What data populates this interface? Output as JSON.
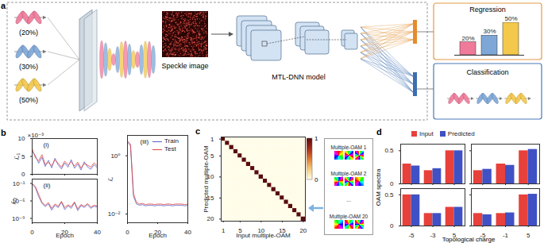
{
  "figure": {
    "panel_labels": [
      "a",
      "b",
      "c",
      "d"
    ],
    "panel_a": {
      "inputs": [
        {
          "label": "(20%)",
          "color": "#f07a9a"
        },
        {
          "label": "(30%)",
          "color": "#7ea7d8"
        },
        {
          "label": "(50%)",
          "color": "#f3c84b"
        }
      ],
      "speckle_label": "Speckle image",
      "model_label": "MTL-DNN model",
      "classification_label": "Classification"
    },
    "panel_c_side": {
      "items": [
        "Multiple-OAM 1",
        "Multiple-OAM 2",
        "...",
        "Multiple-OAM 20"
      ]
    }
  },
  "chart_data": [
    {
      "type": "bar",
      "title": "Regression",
      "categories": [
        null,
        null,
        null
      ],
      "values": [
        20,
        30,
        50
      ],
      "value_labels": [
        "20%",
        "30%",
        "50%"
      ],
      "colors": [
        "#f07a9a",
        "#7ea7d8",
        "#f3c84b"
      ],
      "ylim": [
        0,
        50
      ],
      "data_labels": true,
      "tick_labels": false
    },
    {
      "type": "line",
      "title": "(i)",
      "ylabel": "ℒ₁",
      "y_unit_label": "×10⁻³",
      "x": [
        0,
        2,
        4,
        6,
        8,
        10,
        12,
        14,
        16,
        18,
        20,
        22,
        24,
        26,
        28,
        30,
        32,
        34,
        36,
        38,
        40
      ],
      "series": [
        {
          "name": "Train",
          "color": "#5b5fc7",
          "values": [
            6.5,
            5.2,
            3.1,
            4.8,
            2.2,
            3.9,
            1.8,
            4.5,
            2.6,
            1.5,
            3.2,
            2.0,
            4.1,
            1.7,
            2.9,
            1.2,
            3.5,
            2.1,
            1.4,
            2.7,
            1.9
          ]
        },
        {
          "name": "Test",
          "color": "#e2453c",
          "values": [
            7.2,
            4.6,
            3.8,
            5.5,
            2.8,
            3.3,
            2.4,
            4.0,
            3.1,
            2.0,
            3.7,
            2.6,
            3.5,
            2.3,
            3.4,
            1.8,
            3.0,
            2.6,
            2.0,
            3.2,
            2.4
          ]
        }
      ],
      "xlim": [
        0,
        40
      ],
      "xticks": [
        0,
        20,
        40
      ],
      "ylim": [
        0,
        10
      ],
      "yticks": [
        0,
        5,
        10
      ],
      "tick_labels": "y"
    },
    {
      "type": "line",
      "title": "(ii)",
      "ylabel": "ℒ₂",
      "xlabel": "Epoch",
      "log": "y",
      "x": [
        0,
        2,
        4,
        6,
        8,
        10,
        12,
        14,
        16,
        18,
        20,
        22,
        24,
        26,
        28,
        30,
        32,
        34,
        36,
        38,
        40
      ],
      "series": [
        {
          "name": "Train",
          "color": "#5b5fc7",
          "values": [
            0.08,
            0.01,
            0.0001,
            3e-06,
            5e-07,
            2e-06,
            8e-08,
            1e-06,
            3e-07,
            5e-06,
            1e-07,
            8e-07,
            2e-07,
            4e-06,
            6e-08,
            9e-07,
            3e-07,
            1.5e-06,
            2e-07,
            6e-07,
            4e-07
          ]
        },
        {
          "name": "Test",
          "color": "#e2453c",
          "values": [
            0.1,
            0.02,
            0.0003,
            5e-06,
            1e-06,
            4e-06,
            2e-07,
            2e-06,
            6e-07,
            8e-06,
            3e-07,
            1.2e-06,
            5e-07,
            6e-06,
            1.5e-07,
            1.5e-06,
            6e-07,
            2.5e-06,
            4e-07,
            1e-06,
            7e-07
          ]
        }
      ],
      "xlim": [
        0,
        40
      ],
      "xticks": [
        0,
        20,
        40
      ],
      "ylim": [
        1e-10,
        1
      ],
      "yticks": [
        {
          "value": 0.1,
          "label": "10⁻¹"
        },
        {
          "value": 1e-05,
          "label": "10⁻⁵"
        },
        {
          "value": 1e-09,
          "label": "10⁻⁹"
        }
      ]
    },
    {
      "type": "line",
      "title": "(iii)",
      "ylabel": "ℒ",
      "xlabel": "Epoch",
      "log": "y",
      "legend": "top-right",
      "x": [
        0,
        2,
        4,
        6,
        8,
        10,
        12,
        14,
        16,
        18,
        20,
        22,
        24,
        26,
        28,
        30,
        32,
        34,
        36,
        38,
        40
      ],
      "series": [
        {
          "name": "Train",
          "color": "#5b5fc7",
          "values": [
            3.0,
            2.2,
            0.04,
            0.022,
            0.02,
            0.021,
            0.019,
            0.02,
            0.02,
            0.019,
            0.02,
            0.02,
            0.019,
            0.02,
            0.02,
            0.019,
            0.02,
            0.02,
            0.02,
            0.019,
            0.02
          ]
        },
        {
          "name": "Test",
          "color": "#e2453c",
          "values": [
            3.2,
            2.5,
            0.05,
            0.025,
            0.022,
            0.023,
            0.021,
            0.022,
            0.022,
            0.021,
            0.022,
            0.022,
            0.021,
            0.022,
            0.022,
            0.021,
            0.022,
            0.022,
            0.022,
            0.021,
            0.022
          ]
        }
      ],
      "xlim": [
        0,
        40
      ],
      "xticks": [
        0,
        20,
        40
      ],
      "ylim": [
        0.005,
        5
      ],
      "yticks": [
        {
          "value": 1,
          "label": "10⁰"
        },
        {
          "value": 0.01,
          "label": "10⁻²"
        }
      ]
    },
    {
      "type": "heatmap",
      "xlabel": "Input multiple-OAM",
      "ylabel": "Predicted multiple-OAM",
      "x": [
        1,
        2,
        3,
        4,
        5,
        6,
        7,
        8,
        9,
        10,
        11,
        12,
        13,
        14,
        15,
        16,
        17,
        18,
        19,
        20
      ],
      "y": [
        1,
        2,
        3,
        4,
        5,
        6,
        7,
        8,
        9,
        10,
        11,
        12,
        13,
        14,
        15,
        16,
        17,
        18,
        19,
        20
      ],
      "cells": [
        [
          1,
          0,
          0,
          0,
          0,
          0,
          0,
          0,
          0,
          0,
          0,
          0,
          0,
          0,
          0,
          0,
          0,
          0,
          0,
          0
        ],
        [
          0,
          1,
          0,
          0,
          0,
          0,
          0,
          0,
          0,
          0,
          0,
          0,
          0,
          0,
          0,
          0,
          0,
          0,
          0,
          0
        ],
        [
          0,
          0,
          1,
          0,
          0,
          0,
          0,
          0,
          0,
          0,
          0,
          0,
          0,
          0,
          0,
          0,
          0,
          0,
          0,
          0
        ],
        [
          0,
          0,
          0,
          1,
          0,
          0,
          0,
          0,
          0,
          0,
          0,
          0,
          0,
          0,
          0,
          0,
          0,
          0,
          0,
          0
        ],
        [
          0,
          0,
          0,
          0,
          1,
          0,
          0,
          0,
          0,
          0,
          0,
          0,
          0,
          0,
          0,
          0,
          0,
          0,
          0,
          0
        ],
        [
          0,
          0,
          0,
          0,
          0,
          1,
          0,
          0,
          0,
          0,
          0,
          0,
          0,
          0,
          0,
          0,
          0,
          0,
          0,
          0
        ],
        [
          0,
          0,
          0,
          0,
          0,
          0,
          1,
          0,
          0,
          0,
          0,
          0,
          0,
          0,
          0,
          0,
          0,
          0,
          0,
          0
        ],
        [
          0,
          0,
          0,
          0,
          0,
          0,
          0,
          1,
          0,
          0,
          0,
          0,
          0,
          0,
          0,
          0,
          0,
          0,
          0,
          0
        ],
        [
          0,
          0,
          0,
          0,
          0,
          0,
          0,
          0,
          1,
          0,
          0,
          0,
          0,
          0,
          0,
          0,
          0,
          0,
          0,
          0
        ],
        [
          0,
          0,
          0,
          0,
          0,
          0,
          0,
          0,
          0,
          1,
          0,
          0,
          0,
          0,
          0,
          0,
          0,
          0,
          0,
          0
        ],
        [
          0,
          0,
          0,
          0,
          0,
          0,
          0,
          0,
          0,
          0,
          1,
          0,
          0,
          0,
          0,
          0,
          0,
          0,
          0,
          0
        ],
        [
          0,
          0,
          0,
          0,
          0,
          0,
          0,
          0,
          0,
          0,
          0,
          1,
          0,
          0,
          0,
          0,
          0,
          0,
          0,
          0
        ],
        [
          0,
          0,
          0,
          0,
          0,
          0,
          0,
          0,
          0,
          0,
          0,
          0,
          1,
          0,
          0,
          0,
          0,
          0,
          0,
          0
        ],
        [
          0,
          0,
          0,
          0,
          0,
          0,
          0,
          0,
          0,
          0,
          0,
          0,
          0,
          1,
          0,
          0,
          0,
          0,
          0,
          0
        ],
        [
          0,
          0,
          0,
          0,
          0,
          0,
          0,
          0,
          0,
          0,
          0,
          0,
          0,
          0,
          1,
          0,
          0,
          0,
          0,
          0
        ],
        [
          0,
          0,
          0,
          0,
          0,
          0,
          0,
          0,
          0,
          0,
          0,
          0,
          0,
          0,
          0,
          1,
          0,
          0,
          0,
          0
        ],
        [
          0,
          0,
          0,
          0,
          0,
          0,
          0,
          0,
          0,
          0,
          0,
          0,
          0,
          0,
          0,
          0,
          1,
          0,
          0,
          0
        ],
        [
          0,
          0,
          0,
          0,
          0,
          0,
          0,
          0,
          0,
          0,
          0,
          0,
          0,
          0,
          0,
          0,
          0,
          1,
          0,
          0
        ],
        [
          0,
          0,
          0,
          0,
          0,
          0,
          0,
          0,
          0,
          0,
          0,
          0,
          0,
          0,
          0,
          0,
          0,
          0,
          1,
          0
        ],
        [
          0,
          0,
          0,
          0,
          0,
          0,
          0,
          0,
          0,
          0,
          0,
          0,
          0,
          0,
          0,
          0,
          0,
          0,
          0,
          1
        ]
      ],
      "xlim": [
        0.5,
        20.5
      ],
      "xticks": [
        1,
        5,
        10,
        15,
        20
      ],
      "ylim": [
        20.5,
        0.5
      ],
      "yticks": [
        1,
        5,
        10,
        15,
        20
      ],
      "colorbar": {
        "range": [
          0,
          1
        ],
        "ticks": [
          0,
          1
        ]
      }
    },
    {
      "type": "grouped_bar",
      "xlabel": "Topological charge",
      "ylabel": "OAM spectra",
      "legend": "top",
      "series": [
        {
          "name": "Input",
          "color": "#e8403a"
        },
        {
          "name": "Predicted",
          "color": "#3f51c4"
        }
      ],
      "ylim": [
        0,
        0.6
      ],
      "yticks": [
        0,
        0.5
      ],
      "subplots": [
        {
          "categories": [
            -5,
            -3,
            5
          ],
          "values": [
            [
              0.3,
              0.2,
              0.5
            ],
            [
              0.27,
              0.23,
              0.5
            ]
          ],
          "tick_labels": "y"
        },
        {
          "categories": [
            -5,
            -1,
            5
          ],
          "values": [
            [
              0.2,
              0.3,
              0.5
            ],
            [
              0.22,
              0.28,
              0.52
            ]
          ],
          "tick_labels": false
        },
        {
          "categories": [
            -5,
            -3,
            5
          ],
          "values": [
            [
              0.5,
              0.2,
              0.3
            ],
            [
              0.5,
              0.2,
              0.3
            ]
          ],
          "tick_labels": true
        },
        {
          "categories": [
            -5,
            -1,
            5
          ],
          "values": [
            [
              0.2,
              0.2,
              0.5
            ],
            [
              0.18,
              0.21,
              0.51
            ]
          ],
          "tick_labels": "x"
        }
      ]
    }
  ]
}
